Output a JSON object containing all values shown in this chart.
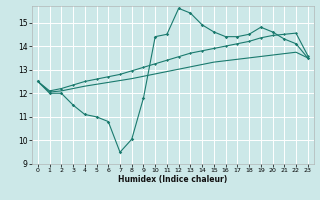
{
  "xlabel": "Humidex (Indice chaleur)",
  "bg_color": "#cce8e8",
  "grid_color": "#ffffff",
  "line_color": "#1a7a6e",
  "xlim": [
    -0.5,
    23.5
  ],
  "ylim": [
    9,
    15.7
  ],
  "yticks": [
    9,
    10,
    11,
    12,
    13,
    14,
    15
  ],
  "xticks": [
    0,
    1,
    2,
    3,
    4,
    5,
    6,
    7,
    8,
    9,
    10,
    11,
    12,
    13,
    14,
    15,
    16,
    17,
    18,
    19,
    20,
    21,
    22,
    23
  ],
  "curve1_x": [
    0,
    1,
    2,
    3,
    4,
    5,
    6,
    7,
    8,
    9,
    10,
    11,
    12,
    13,
    14,
    15,
    16,
    17,
    18,
    19,
    20,
    21,
    22,
    23
  ],
  "curve1_y": [
    12.5,
    12.0,
    12.0,
    11.5,
    11.1,
    11.0,
    10.8,
    9.5,
    10.05,
    11.8,
    14.4,
    14.5,
    15.6,
    15.4,
    14.9,
    14.6,
    14.4,
    14.4,
    14.5,
    14.8,
    14.6,
    14.3,
    14.1,
    13.5
  ],
  "curve2_x": [
    0,
    1,
    2,
    3,
    4,
    5,
    6,
    7,
    8,
    9,
    10,
    11,
    12,
    13,
    14,
    15,
    16,
    17,
    18,
    19,
    20,
    21,
    22,
    23
  ],
  "curve2_y": [
    12.5,
    12.1,
    12.2,
    12.35,
    12.5,
    12.6,
    12.7,
    12.8,
    12.95,
    13.1,
    13.25,
    13.4,
    13.55,
    13.7,
    13.8,
    13.9,
    14.0,
    14.1,
    14.2,
    14.35,
    14.45,
    14.5,
    14.55,
    13.6
  ],
  "curve3_x": [
    0,
    1,
    2,
    3,
    4,
    5,
    6,
    7,
    8,
    9,
    10,
    11,
    12,
    13,
    14,
    15,
    16,
    17,
    18,
    19,
    20,
    21,
    22,
    23
  ],
  "curve3_y": [
    12.5,
    12.05,
    12.1,
    12.2,
    12.3,
    12.38,
    12.46,
    12.54,
    12.62,
    12.72,
    12.82,
    12.92,
    13.02,
    13.12,
    13.22,
    13.32,
    13.38,
    13.44,
    13.5,
    13.56,
    13.62,
    13.68,
    13.74,
    13.5
  ]
}
